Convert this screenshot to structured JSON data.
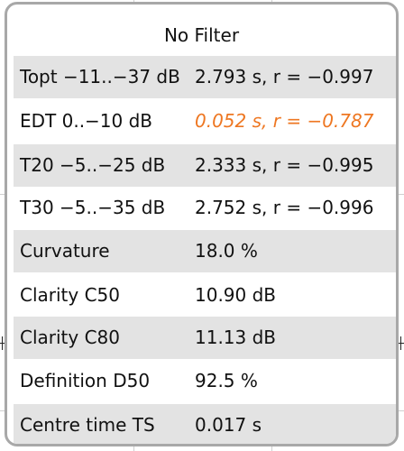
{
  "panel": {
    "title": "No Filter",
    "rows": [
      {
        "label": "Topt −11..−37 dB",
        "value": "2.793 s,  r = −0.997",
        "shaded": true,
        "highlight": false
      },
      {
        "label": "EDT  0..−10 dB",
        "value": "0.052 s, r = −0.787",
        "shaded": false,
        "highlight": true
      },
      {
        "label": "T20 −5..−25 dB",
        "value": "2.333 s,  r = −0.995",
        "shaded": true,
        "highlight": false
      },
      {
        "label": "T30 −5..−35 dB",
        "value": "2.752 s,  r = −0.996",
        "shaded": false,
        "highlight": false
      },
      {
        "label": "Curvature",
        "value": "18.0 %",
        "shaded": true,
        "highlight": false
      },
      {
        "label": "Clarity C50",
        "value": "10.90 dB",
        "shaded": false,
        "highlight": false
      },
      {
        "label": "Clarity C80",
        "value": "11.13 dB",
        "shaded": true,
        "highlight": false
      },
      {
        "label": "Definition D50",
        "value": "92.5 %",
        "shaded": false,
        "highlight": false
      },
      {
        "label": "Centre time TS",
        "value": "0.017 s",
        "shaded": true,
        "highlight": false
      }
    ]
  },
  "colors": {
    "highlight": "#ee7722",
    "row_shade": "#e3e3e3",
    "panel_border": "#a8a8a8"
  }
}
